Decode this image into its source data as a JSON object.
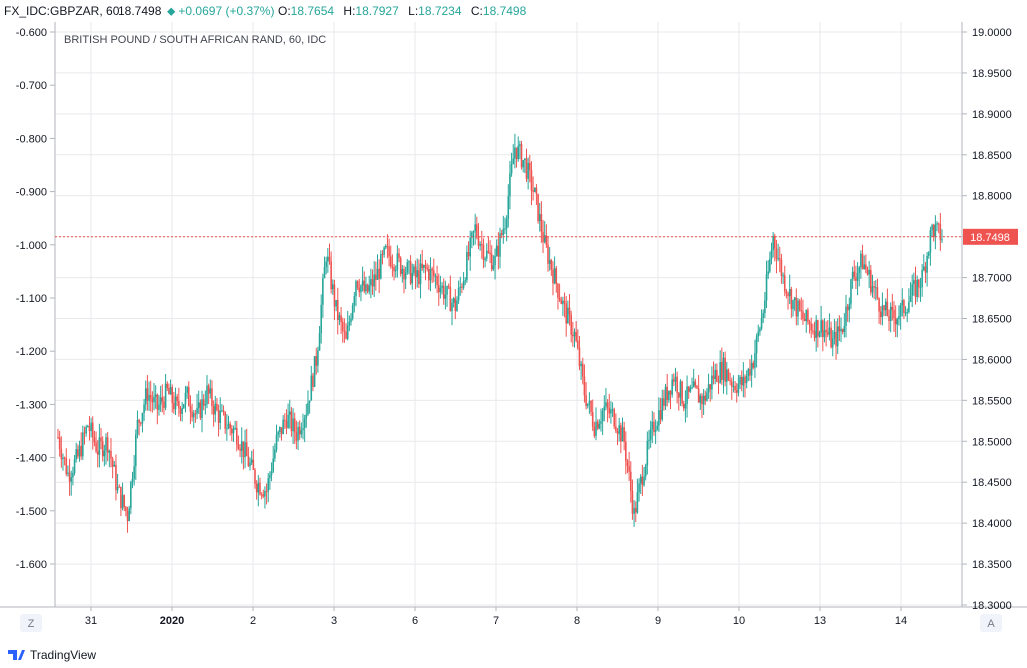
{
  "header": {
    "symbol": "FX_IDC:GBPZAR, 60",
    "last": "18.7498",
    "change": "+0.0697 (+0.37%)",
    "open_key": "O:",
    "open_val": "18.7654",
    "high_key": "H:",
    "high_val": "18.7927",
    "low_key": "L:",
    "low_val": "18.7234",
    "close_key": "C:",
    "close_val": "18.7498"
  },
  "footer": {
    "brand": "TradingView"
  },
  "buttons": {
    "left_scale": "Z",
    "right_scale": "A"
  },
  "colors": {
    "up": "#26a69a",
    "down": "#ef5350",
    "grid": "#e8e9ec",
    "price_line": "#ef5350"
  },
  "chart_data": {
    "type": "candlestick",
    "title": "BRITISH POUND / SOUTH AFRICAN RAND, 60, IDC",
    "right_axis": {
      "ylim": [
        18.3,
        19.0
      ],
      "ticks": [
        "19.0000",
        "18.9500",
        "18.9000",
        "18.8500",
        "18.8000",
        "18.7500",
        "18.7000",
        "18.6500",
        "18.6000",
        "18.5500",
        "18.5000",
        "18.4500",
        "18.4000",
        "18.3500",
        "18.3000"
      ]
    },
    "left_axis": {
      "ylim": [
        -1.6,
        -0.6
      ],
      "ticks": [
        "-0.600",
        "-0.700",
        "-0.800",
        "-0.900",
        "-1.000",
        "-1.100",
        "-1.200",
        "-1.300",
        "-1.400",
        "-1.500",
        "-1.600"
      ]
    },
    "x_ticks": [
      "31",
      "2020",
      "2",
      "3",
      "6",
      "7",
      "8",
      "9",
      "10",
      "13",
      "14"
    ],
    "current_price": {
      "label": "18.7498",
      "value": 18.7498
    },
    "anchors": [
      {
        "t": 0,
        "v": 18.505
      },
      {
        "t": 6,
        "v": 18.46
      },
      {
        "t": 12,
        "v": 18.48
      },
      {
        "t": 18,
        "v": 18.52
      },
      {
        "t": 24,
        "v": 18.49
      },
      {
        "t": 30,
        "v": 18.5
      },
      {
        "t": 36,
        "v": 18.44
      },
      {
        "t": 42,
        "v": 18.41
      },
      {
        "t": 48,
        "v": 18.52
      },
      {
        "t": 54,
        "v": 18.56
      },
      {
        "t": 60,
        "v": 18.54
      },
      {
        "t": 66,
        "v": 18.56
      },
      {
        "t": 72,
        "v": 18.54
      },
      {
        "t": 78,
        "v": 18.555
      },
      {
        "t": 84,
        "v": 18.53
      },
      {
        "t": 90,
        "v": 18.56
      },
      {
        "t": 96,
        "v": 18.535
      },
      {
        "t": 102,
        "v": 18.52
      },
      {
        "t": 108,
        "v": 18.51
      },
      {
        "t": 114,
        "v": 18.48
      },
      {
        "t": 120,
        "v": 18.45
      },
      {
        "t": 126,
        "v": 18.44
      },
      {
        "t": 132,
        "v": 18.5
      },
      {
        "t": 138,
        "v": 18.53
      },
      {
        "t": 144,
        "v": 18.51
      },
      {
        "t": 150,
        "v": 18.54
      },
      {
        "t": 156,
        "v": 18.6
      },
      {
        "t": 162,
        "v": 18.73
      },
      {
        "t": 168,
        "v": 18.66
      },
      {
        "t": 174,
        "v": 18.62
      },
      {
        "t": 180,
        "v": 18.7
      },
      {
        "t": 186,
        "v": 18.68
      },
      {
        "t": 192,
        "v": 18.7
      },
      {
        "t": 198,
        "v": 18.73
      },
      {
        "t": 204,
        "v": 18.72
      },
      {
        "t": 210,
        "v": 18.71
      },
      {
        "t": 216,
        "v": 18.7
      },
      {
        "t": 222,
        "v": 18.71
      },
      {
        "t": 228,
        "v": 18.7
      },
      {
        "t": 234,
        "v": 18.68
      },
      {
        "t": 240,
        "v": 18.665
      },
      {
        "t": 246,
        "v": 18.71
      },
      {
        "t": 252,
        "v": 18.76
      },
      {
        "t": 258,
        "v": 18.73
      },
      {
        "t": 264,
        "v": 18.72
      },
      {
        "t": 270,
        "v": 18.77
      },
      {
        "t": 276,
        "v": 18.86
      },
      {
        "t": 282,
        "v": 18.84
      },
      {
        "t": 288,
        "v": 18.8
      },
      {
        "t": 294,
        "v": 18.74
      },
      {
        "t": 300,
        "v": 18.7
      },
      {
        "t": 306,
        "v": 18.66
      },
      {
        "t": 312,
        "v": 18.63
      },
      {
        "t": 318,
        "v": 18.56
      },
      {
        "t": 324,
        "v": 18.52
      },
      {
        "t": 330,
        "v": 18.54
      },
      {
        "t": 336,
        "v": 18.53
      },
      {
        "t": 342,
        "v": 18.5
      },
      {
        "t": 348,
        "v": 18.41
      },
      {
        "t": 354,
        "v": 18.47
      },
      {
        "t": 360,
        "v": 18.52
      },
      {
        "t": 366,
        "v": 18.55
      },
      {
        "t": 372,
        "v": 18.58
      },
      {
        "t": 378,
        "v": 18.55
      },
      {
        "t": 384,
        "v": 18.56
      },
      {
        "t": 390,
        "v": 18.55
      },
      {
        "t": 396,
        "v": 18.58
      },
      {
        "t": 402,
        "v": 18.59
      },
      {
        "t": 408,
        "v": 18.57
      },
      {
        "t": 414,
        "v": 18.57
      },
      {
        "t": 420,
        "v": 18.6
      },
      {
        "t": 426,
        "v": 18.66
      },
      {
        "t": 432,
        "v": 18.75
      },
      {
        "t": 438,
        "v": 18.7
      },
      {
        "t": 444,
        "v": 18.67
      },
      {
        "t": 450,
        "v": 18.65
      },
      {
        "t": 456,
        "v": 18.64
      },
      {
        "t": 462,
        "v": 18.64
      },
      {
        "t": 468,
        "v": 18.62
      },
      {
        "t": 474,
        "v": 18.64
      },
      {
        "t": 480,
        "v": 18.7
      },
      {
        "t": 486,
        "v": 18.72
      },
      {
        "t": 492,
        "v": 18.69
      },
      {
        "t": 498,
        "v": 18.66
      },
      {
        "t": 504,
        "v": 18.65
      },
      {
        "t": 510,
        "v": 18.66
      },
      {
        "t": 516,
        "v": 18.68
      },
      {
        "t": 522,
        "v": 18.7
      },
      {
        "t": 528,
        "v": 18.76
      },
      {
        "t": 534,
        "v": 18.75
      }
    ]
  }
}
